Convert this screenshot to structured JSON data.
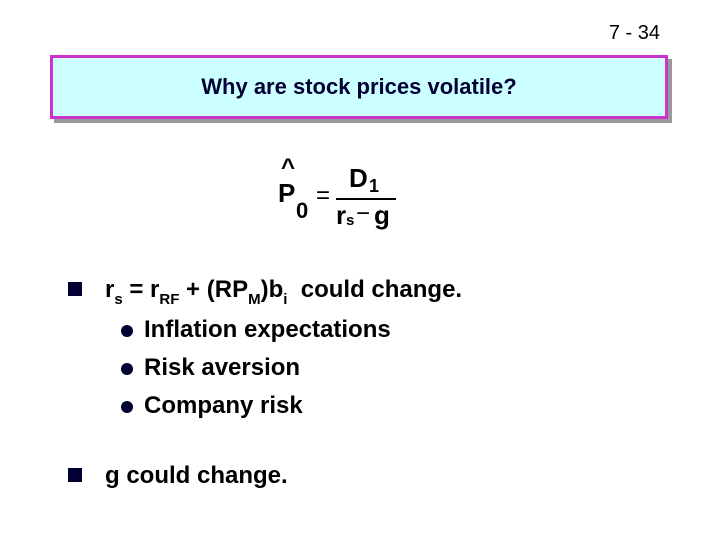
{
  "page_number": "7 - 34",
  "title": "Why are stock prices volatile?",
  "formula": {
    "hat": "^",
    "lhs": {
      "base": "P",
      "sub": "0"
    },
    "equals": "=",
    "numerator": {
      "base": "D",
      "sub": "1"
    },
    "denominator": {
      "r": "r",
      "r_sub": "s",
      "minus": "−",
      "g": "g"
    }
  },
  "bullets": [
    {
      "text": [
        "r",
        "s",
        " = r",
        "RF",
        " + (RP",
        "M",
        ")b",
        "i",
        "  could change."
      ],
      "sub_bullets": [
        "Inflation expectations",
        "Risk aversion",
        "Company risk"
      ]
    },
    {
      "text": [
        "g could change."
      ]
    }
  ]
}
